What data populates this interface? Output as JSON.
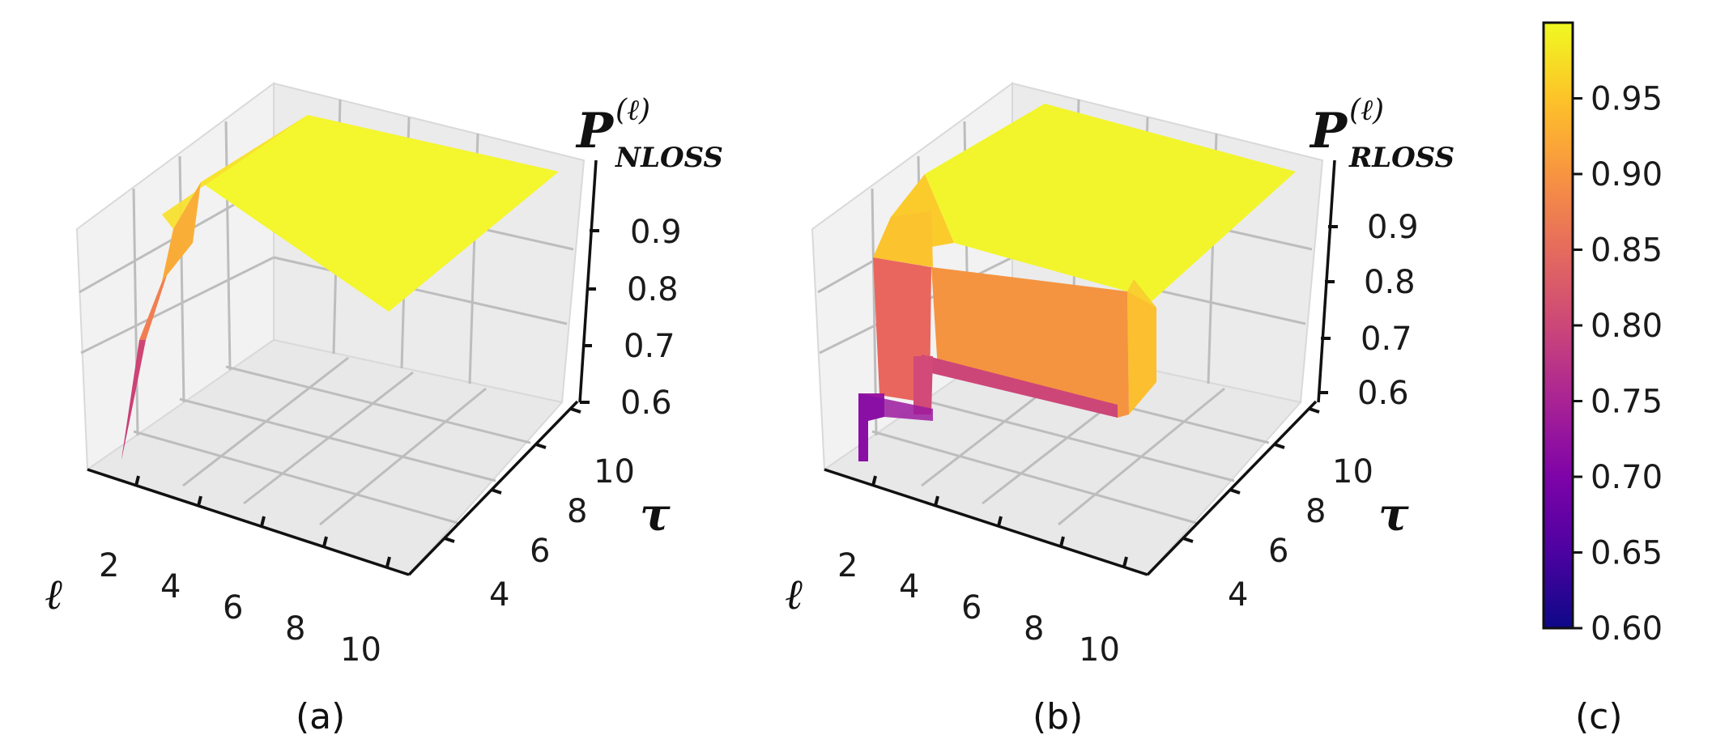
{
  "chart_data": [
    {
      "type": "surface",
      "panel_label": "(a)",
      "xlabel": "ℓ",
      "ylabel": "τ",
      "zlabel": {
        "main": "P",
        "sub": "NLOSS",
        "sup": "(ℓ)"
      },
      "x_ticks": [
        "2",
        "4",
        "6",
        "8",
        "10"
      ],
      "y_ticks": [
        "4",
        "6",
        "8",
        "10"
      ],
      "z_ticks": [
        "0.6",
        "0.7",
        "0.8",
        "0.9"
      ],
      "zlim": [
        0.6,
        1.0
      ],
      "surface_points": [
        {
          "x": 1,
          "value": 0.61
        },
        {
          "x": 1.5,
          "value": 0.75
        },
        {
          "x": 2,
          "value": 0.84
        },
        {
          "x": 3,
          "value": 0.93
        },
        {
          "x": 4,
          "value": 0.98
        },
        {
          "x": 6,
          "value": 0.99
        },
        {
          "x": 10,
          "value": 0.99
        }
      ],
      "colormap": "plasma"
    },
    {
      "type": "surface",
      "panel_label": "(b)",
      "xlabel": "ℓ",
      "ylabel": "τ",
      "zlabel": {
        "main": "P",
        "sub": "RLOSS",
        "sup": "(ℓ)"
      },
      "x_ticks": [
        "2",
        "4",
        "6",
        "8",
        "10"
      ],
      "y_ticks": [
        "4",
        "6",
        "8",
        "10"
      ],
      "z_ticks": [
        "0.6",
        "0.7",
        "0.8",
        "0.9"
      ],
      "zlim": [
        0.6,
        1.0
      ],
      "regions": [
        {
          "x_range": [
            1,
            1.5
          ],
          "y_range": [
            2,
            3
          ],
          "value": 0.7
        },
        {
          "x_range": [
            1.5,
            2
          ],
          "y_range": [
            2,
            11
          ],
          "value": 0.8
        },
        {
          "x_range": [
            1,
            2
          ],
          "y_range": [
            3,
            11
          ],
          "value": 0.84
        },
        {
          "x_range": [
            2,
            6
          ],
          "y_range": [
            3,
            8
          ],
          "value": 0.88
        },
        {
          "x_range": [
            1,
            10
          ],
          "y_range": [
            8,
            11
          ],
          "value": 0.99
        }
      ],
      "colormap": "plasma"
    }
  ],
  "colorbar": {
    "panel_label": "(c)",
    "min": 0.6,
    "max": 1.0,
    "ticks": [
      "0.60",
      "0.65",
      "0.70",
      "0.75",
      "0.80",
      "0.85",
      "0.90",
      "0.95"
    ],
    "tick_values": [
      0.6,
      0.65,
      0.7,
      0.75,
      0.8,
      0.85,
      0.9,
      0.95
    ],
    "colormap": "plasma",
    "colors": [
      "#0d0887",
      "#4c02a1",
      "#7e03a8",
      "#a92395",
      "#cc4778",
      "#e56b5d",
      "#f89441",
      "#fdc328",
      "#f0f921"
    ]
  }
}
